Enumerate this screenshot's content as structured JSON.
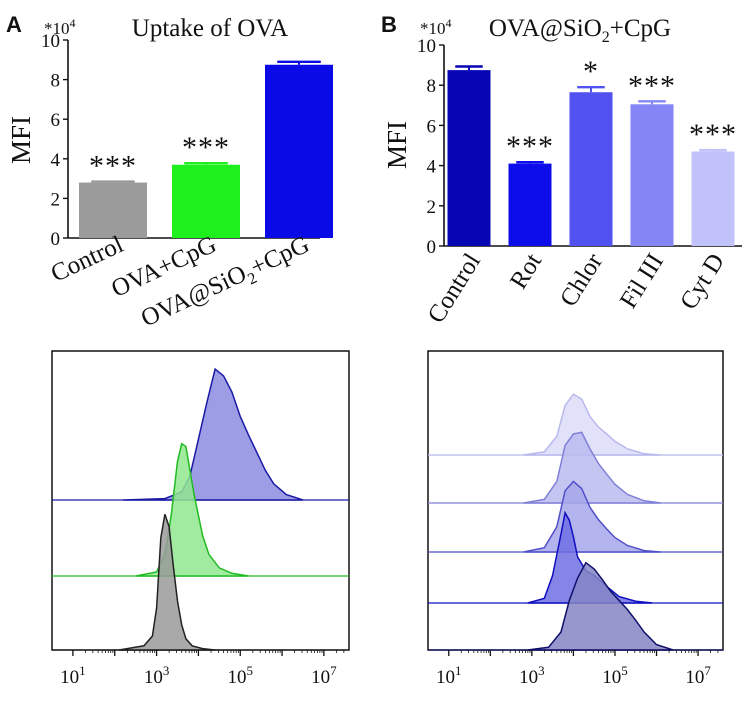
{
  "figure": {
    "panel_a_letter": "A",
    "panel_b_letter": "B"
  },
  "chart_data": [
    {
      "type": "bar",
      "panel": "A",
      "title": "Uptake of OVA",
      "ylabel": "MFI",
      "y_scale_note": "*10^4",
      "y_scale_base": "*10",
      "y_scale_exp": "4",
      "ylim": [
        0,
        10
      ],
      "yticks": [
        "0",
        "2",
        "4",
        "6",
        "8",
        "10"
      ],
      "categories": [
        "Control",
        "OVA+CpG",
        "OVA@SiO2+CpG"
      ],
      "category_labels": [
        {
          "main": "Control"
        },
        {
          "main": "OVA+CpG"
        },
        {
          "main": "OVA@SiO",
          "sub": "2",
          "tail": "+CpG"
        }
      ],
      "values": [
        2.8,
        3.7,
        8.75
      ],
      "errors": [
        0.05,
        0.08,
        0.15
      ],
      "significance": [
        "***",
        "***",
        ""
      ],
      "colors": [
        "#9b9b9b",
        "#1ef01e",
        "#0a0ae6"
      ]
    },
    {
      "type": "bar",
      "panel": "B",
      "title": "OVA@SiO2+CpG",
      "title_parts": {
        "main": "OVA@SiO",
        "sub": "2",
        "tail": "+CpG"
      },
      "ylabel": "MFI",
      "y_scale_note": "*10^4",
      "y_scale_base": "*10",
      "y_scale_exp": "4",
      "ylim": [
        0,
        10
      ],
      "yticks": [
        "0",
        "2",
        "4",
        "6",
        "8",
        "10"
      ],
      "categories": [
        "Control",
        "Rot",
        "Chlor",
        "Fil III",
        "Cyt D"
      ],
      "values": [
        8.75,
        4.1,
        7.65,
        7.05,
        4.7
      ],
      "errors": [
        0.18,
        0.07,
        0.25,
        0.15,
        0.07
      ],
      "significance": [
        "",
        "***",
        "*",
        "***",
        "***"
      ],
      "colors": [
        "#0606b4",
        "#0d0dec",
        "#5252f0",
        "#8585f6",
        "#c2c2fa"
      ]
    },
    {
      "type": "area",
      "panel": "A-histogram",
      "x_scale": "log",
      "x_ticks": [
        {
          "base": "10",
          "exp": "1",
          "log": 1
        },
        {
          "base": "10",
          "exp": "3",
          "log": 3
        },
        {
          "base": "10",
          "exp": "5",
          "log": 5
        },
        {
          "base": "10",
          "exp": "7",
          "log": 7
        }
      ],
      "series": [
        {
          "name": "OVA@SiO2+CpG",
          "stroke": "#1a1aa6",
          "fill": "#8c8ce0",
          "log_x": [
            2.2,
            3.2,
            3.6,
            3.8,
            4.0,
            4.2,
            4.4,
            4.6,
            4.8,
            5.0,
            5.2,
            5.4,
            5.6,
            5.8,
            6.1,
            6.5
          ],
          "y": [
            0,
            0.01,
            0.06,
            0.18,
            0.45,
            0.72,
            0.97,
            0.92,
            0.8,
            0.62,
            0.48,
            0.35,
            0.22,
            0.12,
            0.04,
            0
          ]
        },
        {
          "name": "OVA+CpG",
          "stroke": "#22bb22",
          "fill": "#8fe88f",
          "log_x": [
            2.5,
            3.0,
            3.2,
            3.35,
            3.5,
            3.6,
            3.7,
            3.8,
            3.9,
            4.0,
            4.1,
            4.25,
            4.5,
            4.8,
            5.2
          ],
          "y": [
            0,
            0.03,
            0.16,
            0.45,
            0.85,
            0.98,
            0.96,
            0.78,
            0.6,
            0.45,
            0.3,
            0.16,
            0.06,
            0.02,
            0
          ]
        },
        {
          "name": "Control",
          "stroke": "#222222",
          "fill": "#9a9a9a",
          "log_x": [
            2.1,
            2.7,
            2.9,
            3.0,
            3.1,
            3.2,
            3.3,
            3.4,
            3.5,
            3.6,
            3.7,
            3.85,
            4.1,
            4.4
          ],
          "y": [
            0,
            0.03,
            0.1,
            0.3,
            0.8,
            0.97,
            0.88,
            0.6,
            0.35,
            0.18,
            0.08,
            0.03,
            0.01,
            0
          ]
        }
      ]
    },
    {
      "type": "area",
      "panel": "B-histogram",
      "x_scale": "log",
      "x_ticks": [
        {
          "base": "10",
          "exp": "1",
          "log": 1
        },
        {
          "base": "10",
          "exp": "3",
          "log": 3
        },
        {
          "base": "10",
          "exp": "5",
          "log": 5
        },
        {
          "base": "10",
          "exp": "7",
          "log": 7
        }
      ],
      "series": [
        {
          "name": "Cyt D",
          "stroke": "#b8b8ee",
          "fill": "#dcdcf8",
          "log_x": [
            2.8,
            3.3,
            3.6,
            3.8,
            4.0,
            4.2,
            4.4,
            4.6,
            4.8,
            5.0,
            5.3,
            5.7,
            6.1
          ],
          "y": [
            0,
            0.05,
            0.3,
            0.8,
            0.98,
            0.9,
            0.62,
            0.45,
            0.34,
            0.22,
            0.1,
            0.02,
            0
          ]
        },
        {
          "name": "Fil III",
          "stroke": "#8080d8",
          "fill": "#bbbbf0",
          "log_x": [
            2.8,
            3.3,
            3.6,
            3.8,
            4.0,
            4.2,
            4.4,
            4.6,
            4.8,
            5.0,
            5.3,
            5.7,
            6.1
          ],
          "y": [
            0,
            0.05,
            0.3,
            0.8,
            0.96,
            0.98,
            0.75,
            0.55,
            0.4,
            0.26,
            0.12,
            0.03,
            0
          ]
        },
        {
          "name": "Chlor",
          "stroke": "#5050c8",
          "fill": "#a6a6ea",
          "log_x": [
            2.8,
            3.3,
            3.6,
            3.8,
            4.0,
            4.2,
            4.4,
            4.6,
            4.8,
            5.0,
            5.3,
            5.7,
            6.1
          ],
          "y": [
            0,
            0.06,
            0.35,
            0.85,
            0.98,
            0.88,
            0.62,
            0.45,
            0.32,
            0.2,
            0.09,
            0.02,
            0
          ]
        },
        {
          "name": "Rot",
          "stroke": "#1010c0",
          "fill": "#7070e4",
          "log_x": [
            2.9,
            3.3,
            3.5,
            3.7,
            3.8,
            3.9,
            4.0,
            4.1,
            4.3,
            4.5,
            4.8,
            5.1,
            5.5,
            5.9
          ],
          "y": [
            0,
            0.05,
            0.3,
            0.75,
            0.98,
            0.9,
            0.72,
            0.5,
            0.35,
            0.3,
            0.18,
            0.07,
            0.02,
            0
          ]
        },
        {
          "name": "Control",
          "stroke": "#10106a",
          "fill": "#8585c6",
          "log_x": [
            2.9,
            3.4,
            3.7,
            3.9,
            4.1,
            4.3,
            4.5,
            4.7,
            4.9,
            5.1,
            5.3,
            5.5,
            5.7,
            6.0,
            6.4
          ],
          "y": [
            0,
            0.03,
            0.2,
            0.55,
            0.8,
            0.97,
            0.9,
            0.78,
            0.65,
            0.55,
            0.45,
            0.33,
            0.2,
            0.06,
            0
          ]
        }
      ]
    }
  ]
}
